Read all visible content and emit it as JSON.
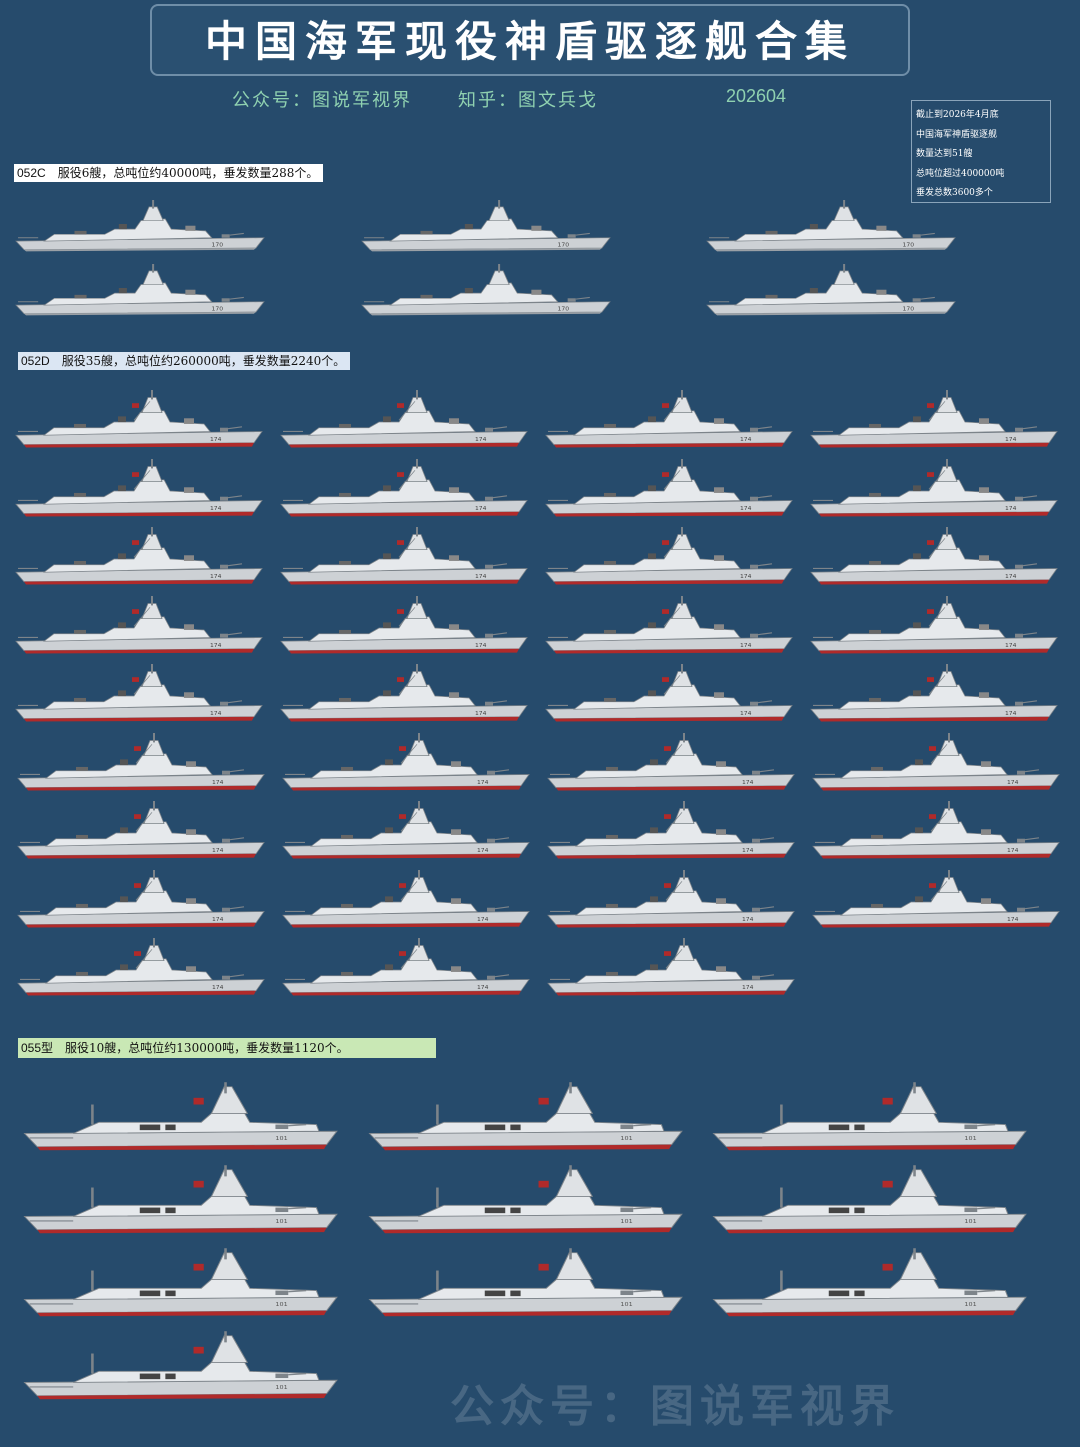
{
  "title": "中国海军现役神盾驱逐舰合集",
  "subtitle": {
    "wechat": "公众号：图说军视界",
    "zhihu": "知乎：图文兵戈",
    "date": "202604"
  },
  "summary_note": [
    "截止到2026年4月底",
    "中国海军神盾驱逐舰",
    "数量达到51艘",
    "总吨位超过400000吨",
    "垂发总数3600多个"
  ],
  "classes": [
    {
      "code": "052C",
      "description": "服役6艘，总吨位约40000吨，垂发数量288个。",
      "count": 6,
      "hull_mark": "170"
    },
    {
      "code": "052D",
      "description": "服役35艘，总吨位约260000吨，垂发数量2240个。",
      "count": 35,
      "hull_mark": "174"
    },
    {
      "code": "055型",
      "description": "服役10艘，总吨位约130000吨，垂发数量1120个。",
      "count": 10,
      "hull_mark": "101"
    }
  ],
  "watermark": "公众号：图说军视界",
  "colors": {
    "background": "#264b6c",
    "hull_gray": "#cdd1d5",
    "waterline_red": "#b02a2a",
    "label_052c": "#ffffff",
    "label_052d": "#dbe6f3",
    "label_055": "#c9e8b5",
    "subtitle_green": "#8fd1b0"
  }
}
